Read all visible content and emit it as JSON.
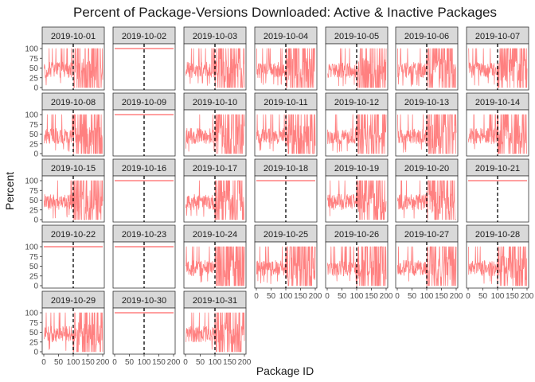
{
  "chart_data": {
    "type": "line",
    "title": "Percent of Package-Versions Downloaded: Active & Inactive Packages",
    "xlabel": "Package ID",
    "ylabel": "Percent",
    "xlim": [
      0,
      200
    ],
    "ylim": [
      0,
      100
    ],
    "x_ticks": [
      0,
      50,
      100,
      150,
      200
    ],
    "x_tick_labels": [
      "0",
      "50",
      "100",
      "150",
      "200"
    ],
    "y_ticks": [
      0,
      25,
      50,
      75,
      100
    ],
    "y_tick_labels": [
      "0",
      "25",
      "50",
      "75",
      "100"
    ],
    "reference_line_x": 100,
    "series_color": "#ff8080",
    "grid": false,
    "layout": {
      "columns": 7,
      "rows": 5
    },
    "panels": [
      {
        "label": "2019-10-01",
        "active": true
      },
      {
        "label": "2019-10-02",
        "active": false
      },
      {
        "label": "2019-10-03",
        "active": true
      },
      {
        "label": "2019-10-04",
        "active": true
      },
      {
        "label": "2019-10-05",
        "active": true
      },
      {
        "label": "2019-10-06",
        "active": true
      },
      {
        "label": "2019-10-07",
        "active": true
      },
      {
        "label": "2019-10-08",
        "active": true
      },
      {
        "label": "2019-10-09",
        "active": false
      },
      {
        "label": "2019-10-10",
        "active": true
      },
      {
        "label": "2019-10-11",
        "active": true
      },
      {
        "label": "2019-10-12",
        "active": true
      },
      {
        "label": "2019-10-13",
        "active": true
      },
      {
        "label": "2019-10-14",
        "active": true
      },
      {
        "label": "2019-10-15",
        "active": true
      },
      {
        "label": "2019-10-16",
        "active": false
      },
      {
        "label": "2019-10-17",
        "active": true
      },
      {
        "label": "2019-10-18",
        "active": false
      },
      {
        "label": "2019-10-19",
        "active": true
      },
      {
        "label": "2019-10-20",
        "active": true
      },
      {
        "label": "2019-10-21",
        "active": false
      },
      {
        "label": "2019-10-22",
        "active": false
      },
      {
        "label": "2019-10-23",
        "active": false
      },
      {
        "label": "2019-10-24",
        "active": true
      },
      {
        "label": "2019-10-25",
        "active": true
      },
      {
        "label": "2019-10-26",
        "active": true
      },
      {
        "label": "2019-10-27",
        "active": true
      },
      {
        "label": "2019-10-28",
        "active": true
      },
      {
        "label": "2019-10-29",
        "active": true
      },
      {
        "label": "2019-10-30",
        "active": false
      },
      {
        "label": "2019-10-31",
        "active": true
      }
    ]
  }
}
